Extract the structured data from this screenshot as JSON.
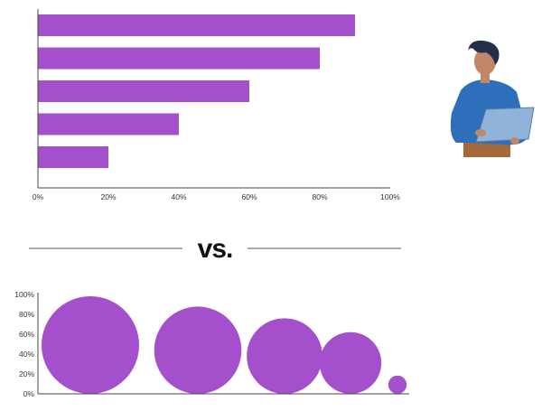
{
  "chart_data": [
    {
      "type": "bar",
      "orientation": "horizontal",
      "values": [
        90,
        80,
        60,
        40,
        20
      ],
      "xlim": [
        0,
        100
      ],
      "x_ticks": [
        "0%",
        "20%",
        "40%",
        "60%",
        "80%",
        "100%"
      ],
      "grid": false,
      "bar_color": "#a450cc"
    },
    {
      "type": "scatter",
      "style": "bubble",
      "values": [
        100,
        80,
        60,
        40,
        20
      ],
      "ylim": [
        0,
        100
      ],
      "y_ticks": [
        "0%",
        "20%",
        "40%",
        "60%",
        "80%",
        "100%"
      ],
      "grid": false,
      "bubble_color": "#a450cc"
    }
  ],
  "separator": {
    "label": "vs."
  },
  "illustration": {
    "name": "person-with-laptop",
    "colors": {
      "shirt": "#2d6fba",
      "skin": "#c08768",
      "hair": "#24304b",
      "laptop": "#8fb3d9",
      "pants": "#a56a3a"
    }
  }
}
